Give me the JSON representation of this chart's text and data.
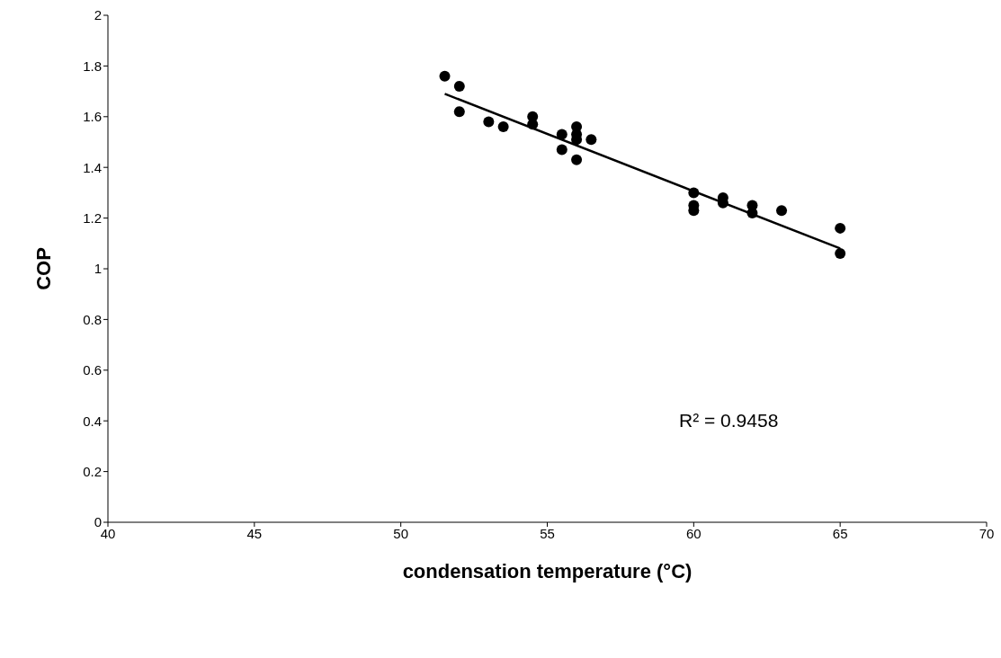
{
  "chart_data": {
    "type": "scatter",
    "xlabel": "condensation temperature (°C)",
    "ylabel": "COP",
    "annotations": [
      "R² = 0.9458"
    ],
    "xlim": [
      40,
      70
    ],
    "xticks": [
      40,
      45,
      50,
      55,
      60,
      65,
      70
    ],
    "ylim": [
      0,
      2
    ],
    "yticks": [
      0,
      0.2,
      0.4,
      0.6,
      0.8,
      1,
      1.2,
      1.4,
      1.6,
      1.8,
      2
    ],
    "grid": false,
    "legend": false,
    "marker": "circle",
    "series": [
      {
        "color": "#000000",
        "x": [
          51.5,
          52,
          52,
          53,
          53.5,
          54.5,
          54.5,
          55.5,
          55.5,
          56,
          56,
          56,
          56,
          56.5,
          60,
          60,
          60,
          61,
          61,
          62,
          62,
          63,
          65,
          65
        ],
        "values": [
          1.76,
          1.72,
          1.62,
          1.58,
          1.56,
          1.6,
          1.57,
          1.53,
          1.47,
          1.56,
          1.53,
          1.51,
          1.43,
          1.51,
          1.3,
          1.25,
          1.23,
          1.28,
          1.26,
          1.25,
          1.22,
          1.23,
          1.16,
          1.06
        ]
      },
      {
        "type": "line",
        "color": "#000000",
        "x": [
          51.5,
          65
        ],
        "values": [
          1.69,
          1.08
        ],
        "marker": "none",
        "line_style": "solid"
      }
    ]
  }
}
